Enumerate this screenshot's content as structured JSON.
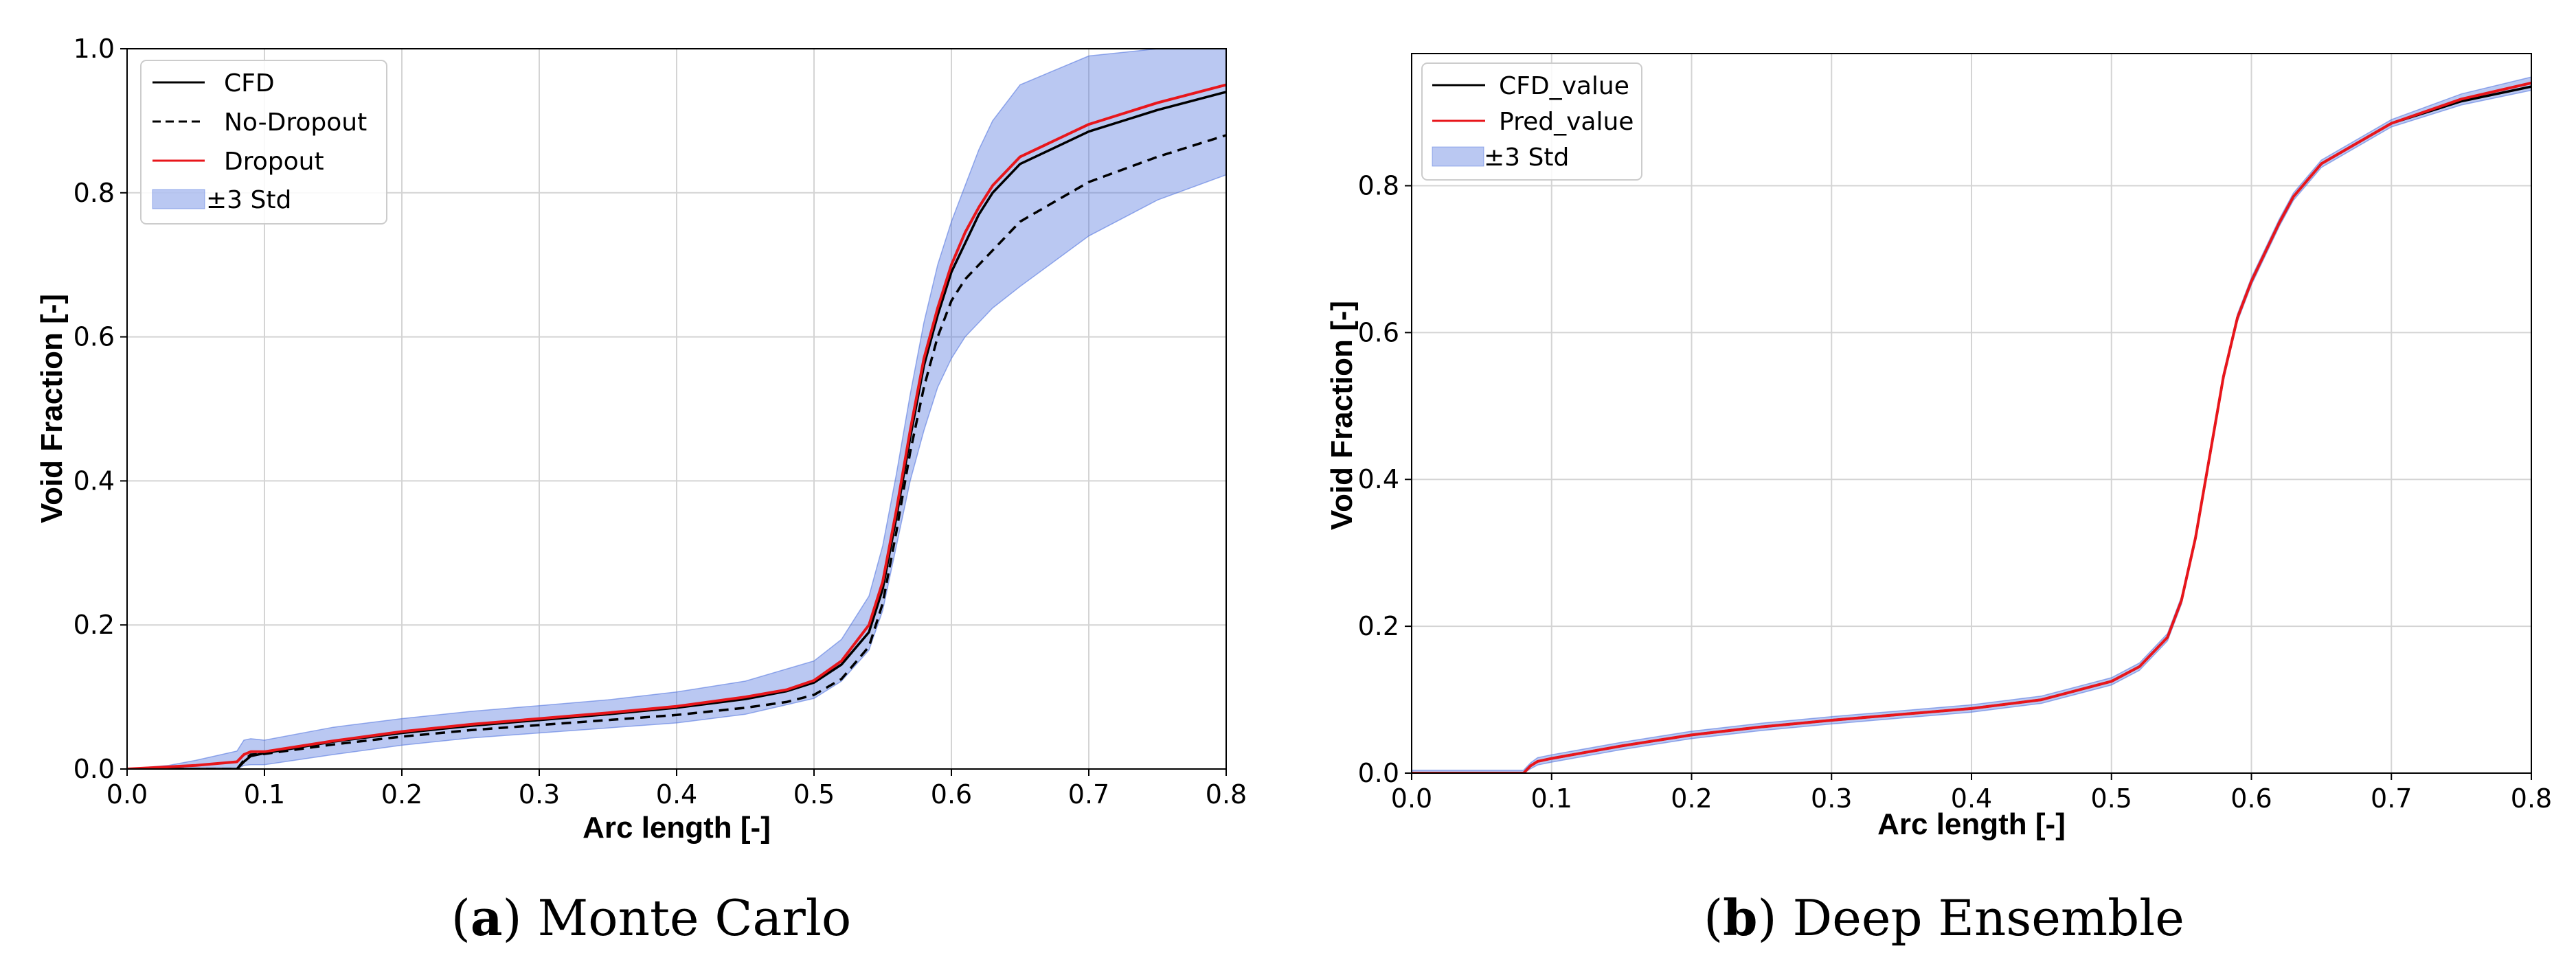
{
  "chart_data": [
    {
      "type": "line",
      "panel_id": "a",
      "caption_letter": "a",
      "caption_text": ") Monte Carlo",
      "caption_open": "(",
      "xlabel": "Arc length [-]",
      "ylabel": "Void Fraction [-]",
      "xlim": [
        0.0,
        0.8
      ],
      "ylim": [
        0.0,
        1.0
      ],
      "xticks": [
        "0.0",
        "0.1",
        "0.2",
        "0.3",
        "0.4",
        "0.5",
        "0.6",
        "0.7",
        "0.8"
      ],
      "yticks": [
        "0.0",
        "0.2",
        "0.4",
        "0.6",
        "0.8",
        "1.0"
      ],
      "grid": true,
      "legend_position": "upper-left",
      "legend": [
        "CFD",
        "No-Dropout",
        "Dropout",
        "±3 Std"
      ],
      "series": [
        {
          "name": "CFD",
          "style": "solid",
          "color": "#000000",
          "x": [
            0.0,
            0.05,
            0.08,
            0.085,
            0.09,
            0.1,
            0.15,
            0.2,
            0.25,
            0.3,
            0.35,
            0.4,
            0.45,
            0.48,
            0.5,
            0.52,
            0.54,
            0.55,
            0.56,
            0.57,
            0.58,
            0.59,
            0.6,
            0.61,
            0.62,
            0.63,
            0.65,
            0.7,
            0.75,
            0.8
          ],
          "y": [
            0.0,
            0.0,
            0.0,
            0.01,
            0.018,
            0.022,
            0.038,
            0.05,
            0.06,
            0.068,
            0.076,
            0.085,
            0.097,
            0.108,
            0.12,
            0.145,
            0.19,
            0.25,
            0.35,
            0.46,
            0.56,
            0.63,
            0.69,
            0.73,
            0.77,
            0.8,
            0.84,
            0.885,
            0.915,
            0.94
          ]
        },
        {
          "name": "No-Dropout",
          "style": "dashed",
          "color": "#000000",
          "x": [
            0.0,
            0.05,
            0.08,
            0.085,
            0.09,
            0.1,
            0.15,
            0.2,
            0.25,
            0.3,
            0.35,
            0.4,
            0.45,
            0.48,
            0.5,
            0.52,
            0.54,
            0.55,
            0.56,
            0.57,
            0.58,
            0.59,
            0.6,
            0.61,
            0.62,
            0.63,
            0.65,
            0.7,
            0.75,
            0.8
          ],
          "y": [
            0.0,
            0.0,
            0.0,
            0.012,
            0.02,
            0.021,
            0.034,
            0.045,
            0.054,
            0.061,
            0.068,
            0.075,
            0.085,
            0.093,
            0.103,
            0.125,
            0.17,
            0.23,
            0.33,
            0.44,
            0.53,
            0.6,
            0.65,
            0.68,
            0.7,
            0.72,
            0.76,
            0.815,
            0.85,
            0.88
          ]
        },
        {
          "name": "Dropout",
          "style": "solid",
          "color": "#e8161b",
          "x": [
            0.0,
            0.05,
            0.08,
            0.085,
            0.09,
            0.1,
            0.15,
            0.2,
            0.25,
            0.3,
            0.35,
            0.4,
            0.45,
            0.48,
            0.5,
            0.52,
            0.54,
            0.55,
            0.56,
            0.57,
            0.58,
            0.59,
            0.6,
            0.61,
            0.62,
            0.63,
            0.65,
            0.7,
            0.75,
            0.8
          ],
          "y": [
            0.0,
            0.005,
            0.01,
            0.02,
            0.024,
            0.024,
            0.039,
            0.052,
            0.062,
            0.07,
            0.078,
            0.087,
            0.1,
            0.11,
            0.123,
            0.15,
            0.2,
            0.26,
            0.36,
            0.47,
            0.57,
            0.64,
            0.7,
            0.745,
            0.78,
            0.81,
            0.85,
            0.895,
            0.925,
            0.95
          ]
        }
      ],
      "band": {
        "name": "±3 Std",
        "color": "#4a6fde",
        "opacity": 0.38,
        "x": [
          0.0,
          0.03,
          0.05,
          0.08,
          0.085,
          0.09,
          0.1,
          0.15,
          0.2,
          0.25,
          0.3,
          0.35,
          0.4,
          0.45,
          0.5,
          0.52,
          0.54,
          0.55,
          0.56,
          0.57,
          0.58,
          0.59,
          0.6,
          0.61,
          0.62,
          0.63,
          0.65,
          0.7,
          0.75,
          0.8
        ],
        "lower": [
          0.0,
          0.0,
          0.0,
          0.0,
          0.005,
          0.006,
          0.006,
          0.02,
          0.033,
          0.043,
          0.05,
          0.057,
          0.064,
          0.076,
          0.098,
          0.122,
          0.165,
          0.22,
          0.31,
          0.4,
          0.47,
          0.53,
          0.57,
          0.6,
          0.62,
          0.64,
          0.67,
          0.74,
          0.79,
          0.825
        ],
        "upper": [
          0.0,
          0.005,
          0.012,
          0.025,
          0.04,
          0.042,
          0.04,
          0.058,
          0.07,
          0.08,
          0.088,
          0.096,
          0.107,
          0.122,
          0.15,
          0.18,
          0.24,
          0.31,
          0.41,
          0.52,
          0.62,
          0.7,
          0.76,
          0.81,
          0.86,
          0.9,
          0.95,
          0.99,
          1.0,
          1.0
        ]
      }
    },
    {
      "type": "line",
      "panel_id": "b",
      "caption_letter": "b",
      "caption_text": ") Deep Ensemble",
      "caption_open": "(",
      "xlabel": "Arc length [-]",
      "ylabel": "Void Fraction [-]",
      "xlim": [
        0.0,
        0.8
      ],
      "ylim": [
        0.0,
        0.98
      ],
      "xticks": [
        "0.0",
        "0.1",
        "0.2",
        "0.3",
        "0.4",
        "0.5",
        "0.6",
        "0.7",
        "0.8"
      ],
      "yticks": [
        "0.0",
        "0.2",
        "0.4",
        "0.6",
        "0.8"
      ],
      "grid": true,
      "legend_position": "upper-left",
      "legend": [
        "CFD_value",
        "Pred_value",
        "±3 Std"
      ],
      "series": [
        {
          "name": "CFD_value",
          "style": "solid",
          "color": "#000000",
          "x": [
            0.0,
            0.05,
            0.08,
            0.085,
            0.09,
            0.1,
            0.15,
            0.2,
            0.25,
            0.3,
            0.35,
            0.4,
            0.45,
            0.5,
            0.52,
            0.54,
            0.55,
            0.56,
            0.57,
            0.58,
            0.59,
            0.6,
            0.61,
            0.62,
            0.63,
            0.65,
            0.7,
            0.75,
            0.8
          ],
          "y": [
            0.0,
            0.0,
            0.0,
            0.01,
            0.016,
            0.02,
            0.037,
            0.052,
            0.063,
            0.072,
            0.08,
            0.088,
            0.1,
            0.125,
            0.145,
            0.185,
            0.235,
            0.32,
            0.43,
            0.54,
            0.62,
            0.67,
            0.71,
            0.75,
            0.785,
            0.83,
            0.885,
            0.915,
            0.935
          ]
        },
        {
          "name": "Pred_value",
          "style": "solid",
          "color": "#e8161b",
          "x": [
            0.0,
            0.05,
            0.08,
            0.085,
            0.09,
            0.1,
            0.15,
            0.2,
            0.25,
            0.3,
            0.35,
            0.4,
            0.45,
            0.5,
            0.52,
            0.54,
            0.55,
            0.56,
            0.57,
            0.58,
            0.59,
            0.6,
            0.61,
            0.62,
            0.63,
            0.65,
            0.7,
            0.75,
            0.8
          ],
          "y": [
            0.0,
            0.0,
            0.0,
            0.01,
            0.016,
            0.02,
            0.037,
            0.052,
            0.063,
            0.072,
            0.08,
            0.088,
            0.1,
            0.125,
            0.145,
            0.185,
            0.235,
            0.32,
            0.43,
            0.54,
            0.62,
            0.67,
            0.71,
            0.75,
            0.785,
            0.83,
            0.885,
            0.918,
            0.94
          ]
        }
      ],
      "band": {
        "name": "±3 Std",
        "color": "#4a6fde",
        "opacity": 0.38,
        "x": [
          0.0,
          0.05,
          0.08,
          0.085,
          0.09,
          0.1,
          0.15,
          0.2,
          0.25,
          0.3,
          0.35,
          0.4,
          0.45,
          0.5,
          0.52,
          0.54,
          0.55,
          0.56,
          0.57,
          0.58,
          0.59,
          0.6,
          0.61,
          0.62,
          0.63,
          0.65,
          0.7,
          0.75,
          0.8
        ],
        "lower": [
          0.0,
          0.0,
          0.0,
          0.006,
          0.011,
          0.015,
          0.032,
          0.047,
          0.058,
          0.067,
          0.075,
          0.083,
          0.095,
          0.12,
          0.14,
          0.18,
          0.23,
          0.315,
          0.425,
          0.535,
          0.615,
          0.665,
          0.705,
          0.745,
          0.78,
          0.825,
          0.88,
          0.91,
          0.93
        ],
        "upper": [
          0.004,
          0.004,
          0.004,
          0.014,
          0.021,
          0.025,
          0.042,
          0.057,
          0.068,
          0.077,
          0.085,
          0.093,
          0.105,
          0.13,
          0.15,
          0.19,
          0.24,
          0.325,
          0.435,
          0.545,
          0.625,
          0.675,
          0.715,
          0.755,
          0.79,
          0.835,
          0.89,
          0.925,
          0.948
        ]
      }
    }
  ]
}
